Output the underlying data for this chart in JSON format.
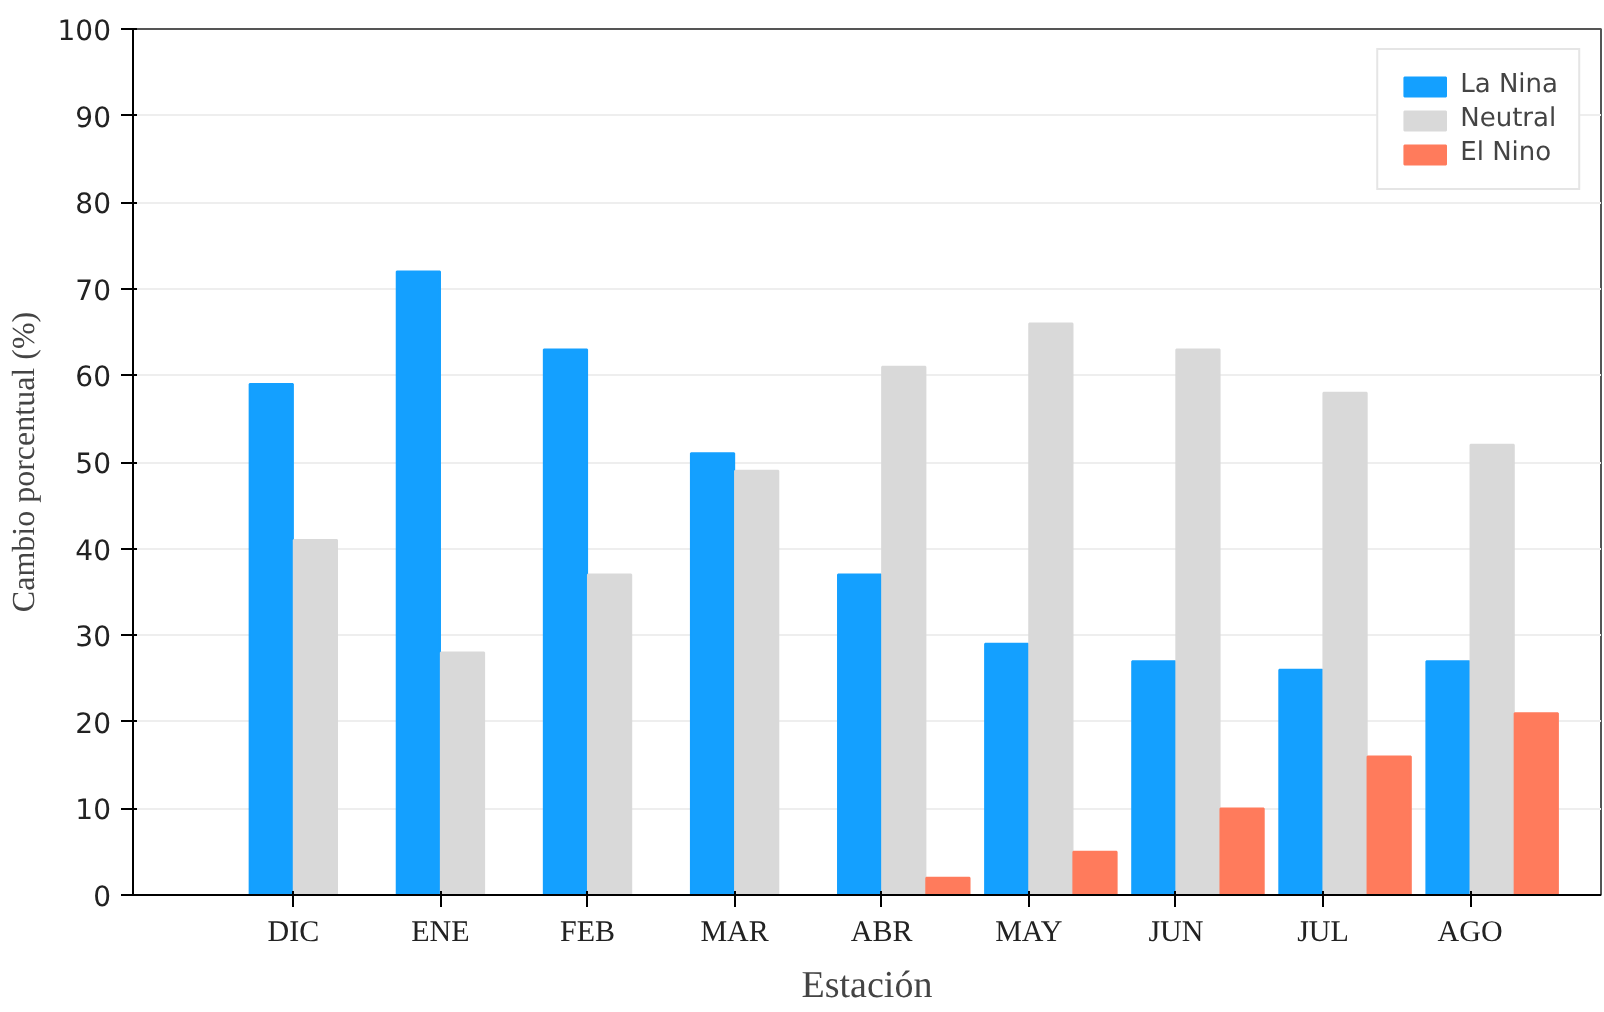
{
  "chart_data": {
    "type": "bar",
    "xlabel": "Estación",
    "ylabel": "Cambio porcentual (%)",
    "categories": [
      "DIC",
      "ENE",
      "FEB",
      "MAR",
      "ABR",
      "MAY",
      "JUN",
      "JUL",
      "AGO"
    ],
    "series": [
      {
        "name": "La Nina",
        "color": "#14a0ff",
        "values": [
          59,
          72,
          63,
          51,
          37,
          29,
          27,
          26,
          27
        ]
      },
      {
        "name": "Neutral",
        "color": "#d9d9d9",
        "values": [
          41,
          28,
          37,
          49,
          61,
          66,
          63,
          58,
          52
        ]
      },
      {
        "name": "El Nino",
        "color": "#ff7b5c",
        "values": [
          0,
          0,
          0,
          0,
          2,
          5,
          10,
          16,
          21
        ]
      }
    ],
    "ylim": [
      0,
      100
    ],
    "yticks": [
      0,
      10,
      20,
      30,
      40,
      50,
      60,
      70,
      80,
      90,
      100
    ],
    "grid": "y",
    "legend": "top right"
  }
}
